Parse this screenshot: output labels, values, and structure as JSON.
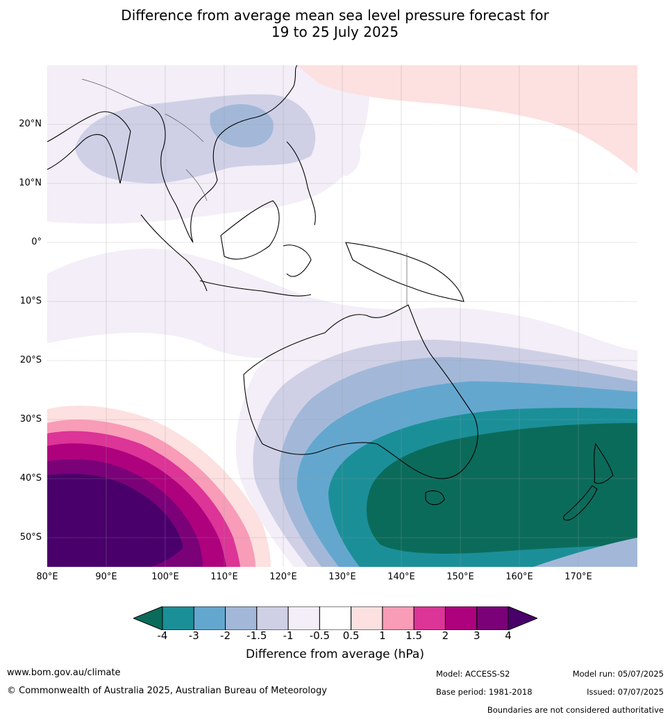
{
  "title_line1": "Difference from average mean sea level pressure forecast for",
  "title_line2": "19 to 25 July 2025",
  "lat_labels": [
    "20°N",
    "10°N",
    "0°",
    "10°S",
    "20°S",
    "30°S",
    "40°S",
    "50°S"
  ],
  "lon_labels": [
    "80°E",
    "90°E",
    "100°E",
    "110°E",
    "120°E",
    "130°E",
    "140°E",
    "150°E",
    "160°E",
    "170°E"
  ],
  "colorbar": {
    "ticks": [
      "-4",
      "-3",
      "-2",
      "-1.5",
      "-1",
      "-0.5",
      "0.5",
      "1",
      "1.5",
      "2",
      "3",
      "4"
    ],
    "colors": [
      "#0b6b5a",
      "#1b8f98",
      "#63a7cf",
      "#a3b8d8",
      "#cfd0e6",
      "#f3eef7",
      "#ffffff",
      "#fde0e0",
      "#f89cb8",
      "#dd3497",
      "#ae017e",
      "#7a0177",
      "#49006a"
    ],
    "label": "Difference from average (hPa)"
  },
  "footer": {
    "website": "www.bom.gov.au/climate",
    "copyright": "© Commonwealth of Australia 2025, Australian Bureau of Meteorology",
    "model": "Model: ACCESS-S2",
    "base_period": "Base period: 1981-2018",
    "model_run": "Model run: 05/07/2025",
    "issued": "Issued: 07/07/2025",
    "disclaimer": "Boundaries are not considered authoritative"
  }
}
